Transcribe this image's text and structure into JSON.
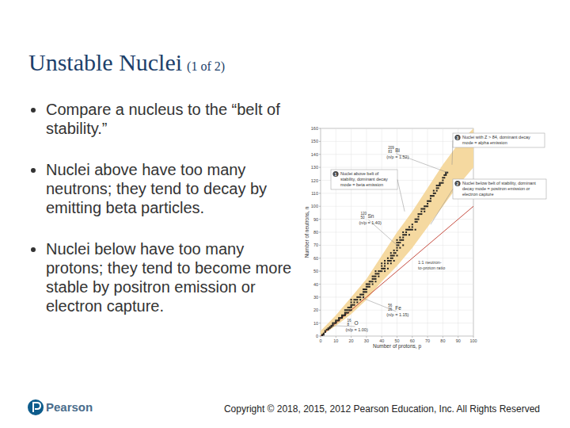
{
  "slide": {
    "title": "Unstable Nuclei",
    "title_note": "(1 of 2)",
    "bullets": [
      "Compare a nucleus to the “belt of stability.”",
      "Nuclei above have too many neutrons; they tend to decay by emitting beta particles.",
      "Nuclei below have too many protons; they tend to become more stable by positron emission or electron capture."
    ],
    "footer": {
      "brand": "Pearson",
      "copyright": "Copyright © 2018, 2015, 2012 Pearson Education, Inc. All Rights Reserved"
    }
  },
  "chart_data": {
    "type": "scatter",
    "x_label": "Number of protons, p",
    "y_label": "Number of neutrons, n",
    "x": [
      1,
      1,
      2,
      2,
      3,
      3,
      4,
      5,
      5,
      6,
      6,
      7,
      7,
      8,
      8,
      8,
      9,
      10,
      10,
      10,
      11,
      12,
      12,
      12,
      13,
      14,
      14,
      14,
      15,
      16,
      16,
      16,
      16,
      17,
      17,
      18,
      18,
      18,
      19,
      19,
      20,
      20,
      20,
      20,
      20,
      20,
      21,
      22,
      22,
      22,
      23,
      24,
      24,
      24,
      25,
      26,
      26,
      26,
      27,
      28,
      28,
      28,
      28,
      29,
      29,
      30,
      30,
      30,
      30,
      31,
      31,
      32,
      32,
      32,
      33,
      34,
      34,
      34,
      34,
      35,
      35,
      36,
      36,
      36,
      36,
      36,
      37,
      38,
      38,
      38,
      39,
      40,
      40,
      40,
      40,
      41,
      42,
      42,
      42,
      42,
      42,
      44,
      44,
      44,
      44,
      45,
      46,
      46,
      46,
      46,
      46,
      47,
      47,
      48,
      48,
      48,
      48,
      49,
      50,
      50,
      50,
      50,
      50,
      50,
      51,
      51,
      52,
      52,
      52,
      52,
      53,
      54,
      54,
      54,
      54,
      54,
      55,
      56,
      56,
      56,
      57,
      58,
      58,
      58,
      59,
      60,
      60,
      60,
      62,
      62,
      62,
      63,
      63,
      64,
      64,
      64,
      65,
      66,
      66,
      66,
      67,
      68,
      68,
      68,
      69,
      70,
      70,
      70,
      71,
      72,
      72,
      72,
      73,
      74,
      74,
      74,
      75,
      76,
      76,
      76,
      77,
      77,
      78,
      78,
      78,
      79,
      80,
      80,
      80,
      81,
      81,
      82,
      82,
      82,
      83
    ],
    "values": [
      0,
      1,
      1,
      2,
      3,
      4,
      5,
      5,
      6,
      6,
      7,
      7,
      8,
      8,
      9,
      10,
      10,
      10,
      11,
      12,
      12,
      12,
      13,
      14,
      14,
      14,
      15,
      16,
      16,
      16,
      17,
      18,
      20,
      18,
      20,
      18,
      20,
      22,
      20,
      22,
      20,
      22,
      23,
      24,
      26,
      28,
      24,
      24,
      26,
      28,
      28,
      26,
      28,
      30,
      30,
      28,
      30,
      32,
      32,
      30,
      32,
      34,
      36,
      34,
      36,
      34,
      36,
      38,
      40,
      38,
      40,
      38,
      40,
      42,
      42,
      40,
      42,
      44,
      46,
      44,
      46,
      42,
      44,
      46,
      48,
      50,
      48,
      46,
      48,
      50,
      50,
      50,
      52,
      54,
      56,
      52,
      50,
      52,
      54,
      56,
      58,
      52,
      56,
      58,
      60,
      58,
      56,
      58,
      60,
      62,
      64,
      60,
      62,
      58,
      62,
      64,
      66,
      64,
      62,
      66,
      68,
      70,
      72,
      74,
      70,
      72,
      68,
      72,
      74,
      76,
      74,
      70,
      74,
      76,
      78,
      80,
      78,
      78,
      80,
      82,
      82,
      78,
      82,
      84,
      82,
      82,
      84,
      86,
      82,
      88,
      90,
      88,
      90,
      90,
      92,
      94,
      94,
      94,
      96,
      98,
      98,
      96,
      98,
      100,
      100,
      100,
      102,
      104,
      104,
      104,
      106,
      108,
      108,
      108,
      110,
      112,
      110,
      112,
      114,
      116,
      114,
      116,
      116,
      117,
      118,
      118,
      118,
      120,
      122,
      122,
      124,
      124,
      125,
      126,
      126
    ],
    "color": "#222222",
    "marker": "square",
    "xlim": [
      0,
      100
    ],
    "ylim": [
      0,
      160
    ],
    "xticks": [
      0,
      10,
      20,
      30,
      40,
      50,
      60,
      70,
      80,
      90,
      100
    ],
    "yticks": [
      0,
      10,
      20,
      30,
      40,
      50,
      60,
      70,
      80,
      90,
      100,
      110,
      120,
      130,
      140,
      150,
      160
    ],
    "grid": true,
    "band": {
      "x": [
        0,
        10,
        20,
        30,
        40,
        50,
        60,
        70,
        80,
        90,
        100
      ],
      "lower": [
        0,
        8,
        17,
        28,
        42,
        54,
        68,
        84,
        100,
        116,
        130
      ],
      "upper": [
        4,
        16,
        30,
        44,
        62,
        80,
        96,
        114,
        132,
        148,
        160
      ],
      "color": "#f5d9a0"
    },
    "reference_line": {
      "x": [
        0,
        100
      ],
      "y": [
        0,
        100
      ],
      "label": [
        "1:1 neutron-",
        "to-proton ratio"
      ],
      "color": "#c0392b"
    },
    "annotations": [
      {
        "mass": 209,
        "atomic_number": 83,
        "symbol": "Bi",
        "note": "(n/p = 1.52)",
        "x": 83,
        "y": 126
      },
      {
        "mass": 120,
        "atomic_number": 50,
        "symbol": "Sn",
        "note": "(n/p = 1.40)",
        "x": 50,
        "y": 70
      },
      {
        "mass": 56,
        "atomic_number": 26,
        "symbol": "Fe",
        "note": "(n/p = 1.15)",
        "x": 26,
        "y": 30
      },
      {
        "mass": 16,
        "atomic_number": 8,
        "symbol": "O",
        "note": "(n/p = 1.00)",
        "x": 8,
        "y": 8
      }
    ],
    "callouts": [
      {
        "number": 3,
        "text": "Nuclei with Z > 84, dominant decay mode = alpha emission"
      },
      {
        "number": 1,
        "text": "Nuclei above belt of stability, dominant decay mode = beta emission"
      },
      {
        "number": 2,
        "text": "Nuclei below belt of stability, dominant decay mode = positron emission or electron capture"
      }
    ]
  }
}
